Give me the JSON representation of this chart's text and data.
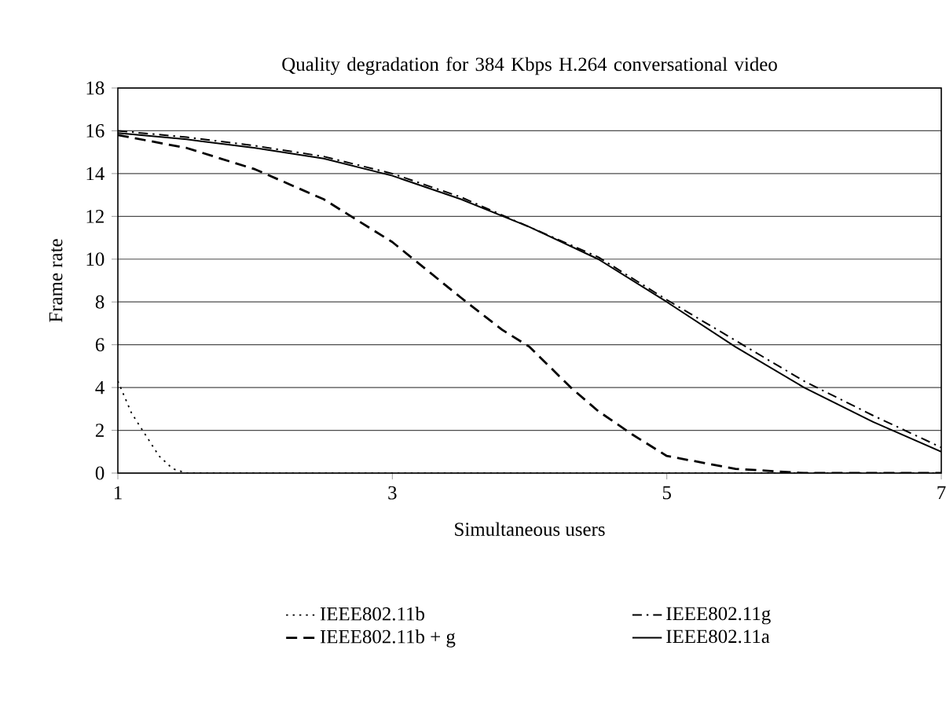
{
  "chart_data": {
    "type": "line",
    "title": "Quality degradation for 384 Kbps H.264 conversational video",
    "xlabel": "Simultaneous users",
    "ylabel": "Frame rate",
    "xlim": [
      1,
      7
    ],
    "xticks": [
      1,
      3,
      5,
      7
    ],
    "ylim": [
      0,
      18
    ],
    "yticks": [
      0,
      2,
      4,
      6,
      8,
      10,
      12,
      14,
      16,
      18
    ],
    "grid": "y",
    "legend": "bottom",
    "marker": "none",
    "series": [
      {
        "name": "IEEE802.11b",
        "color": "#000000",
        "line_style": "dotted",
        "x": [
          1,
          1.1,
          1.2,
          1.3,
          1.4,
          1.5,
          2,
          3,
          4,
          5,
          6,
          7
        ],
        "values": [
          4.3,
          2.8,
          1.8,
          0.8,
          0.2,
          0,
          0,
          0,
          0,
          0,
          0,
          0
        ]
      },
      {
        "name": "IEEE802.11g",
        "color": "#000000",
        "line_style": "dashdot",
        "x": [
          1,
          1.5,
          2,
          2.5,
          3,
          3.5,
          4,
          4.5,
          5,
          5.5,
          6,
          6.5,
          7
        ],
        "values": [
          16,
          15.7,
          15.3,
          14.8,
          14,
          12.9,
          11.5,
          10.1,
          8.1,
          6.2,
          4.3,
          2.7,
          1.2
        ]
      },
      {
        "name": "IEEE802.11b + g",
        "color": "#000000",
        "line_style": "dashed",
        "x": [
          1,
          1.5,
          2,
          2.5,
          3,
          3.5,
          3.8,
          4,
          4.3,
          4.5,
          4.75,
          5,
          5.5,
          6,
          6.5,
          7
        ],
        "values": [
          15.8,
          15.2,
          14.2,
          12.8,
          10.8,
          8.2,
          6.7,
          5.9,
          4.0,
          2.9,
          1.8,
          0.8,
          0.2,
          0,
          0,
          0
        ]
      },
      {
        "name": "IEEE802.11a",
        "color": "#000000",
        "line_style": "solid",
        "x": [
          1,
          1.5,
          2,
          2.5,
          3,
          3.5,
          4,
          4.5,
          5,
          5.5,
          6,
          6.5,
          7
        ],
        "values": [
          15.9,
          15.6,
          15.2,
          14.7,
          13.9,
          12.8,
          11.5,
          10.0,
          8.0,
          5.9,
          4.0,
          2.4,
          1.0
        ]
      }
    ]
  }
}
